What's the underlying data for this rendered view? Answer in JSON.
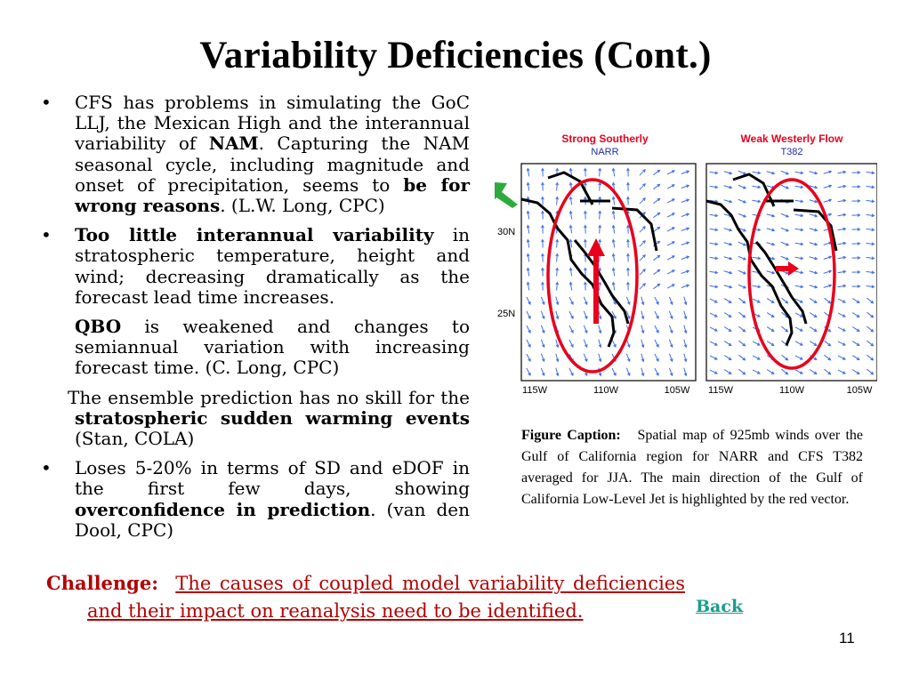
{
  "slide": {
    "title": "Variability Deficiencies (Cont.)",
    "page_number": "11"
  },
  "bullets": {
    "b1": {
      "marker": "•",
      "t1": "CFS has problems in simulating the GoC LLJ, the Mexican High and the interannual variability of ",
      "t2": "NAM",
      "t3": ". Capturing the NAM seasonal cycle, including magnitude and onset of precipitation, seems to ",
      "t4": "be for wrong reasons",
      "t5": ". (L.W. Long, CPC)"
    },
    "b2": {
      "marker": "•",
      "t1": "Too little interannual variability",
      "t2": " in stratospheric temperature, height and wind; decreasing dramatically as the forecast lead time increases."
    },
    "b3": {
      "t1": "QBO",
      "t2": " is weakened and changes to semiannual variation with increasing forecast time. (C. Long, CPC)"
    },
    "b3b": {
      "t1": "The ensemble prediction has no skill for the ",
      "t2": "stratospheric sudden warming events",
      "t3": " (Stan, COLA)"
    },
    "b4": {
      "marker": "•",
      "t1": "Loses 5-20% in terms of SD and eDOF in the first few days, showing ",
      "t2": "overconfidence in prediction",
      "t3": ".  (van den Dool, CPC)"
    }
  },
  "challenge": {
    "label": "Challenge:",
    "text": "The causes of coupled model variability deficiencies and their impact on reanalysis need to be identified."
  },
  "back_link": "Back",
  "caption": {
    "label": "Figure Caption:",
    "text": "Spatial map of 925mb winds over the Gulf of California region for NARR and CFS T382 averaged for JJA.  The main direction of the Gulf of California Low-Level Jet is highlighted by the red vector."
  },
  "maps": {
    "left": {
      "title": "Strong Southerly",
      "subtitle": "NARR"
    },
    "right": {
      "title": "Weak Westerly Flow",
      "subtitle": "T382"
    },
    "lat_labels": [
      "30N",
      "25N"
    ],
    "lon_labels_left": [
      "115W",
      "110W",
      "105W"
    ],
    "lon_labels_right": [
      "115W",
      "110W",
      "105W"
    ],
    "colors": {
      "title": "#e8001c",
      "subtitle": "#1a2db5",
      "vectors": "#3f6fe8",
      "outline": "#e8001c",
      "pointer": "#2eaa3c"
    }
  }
}
